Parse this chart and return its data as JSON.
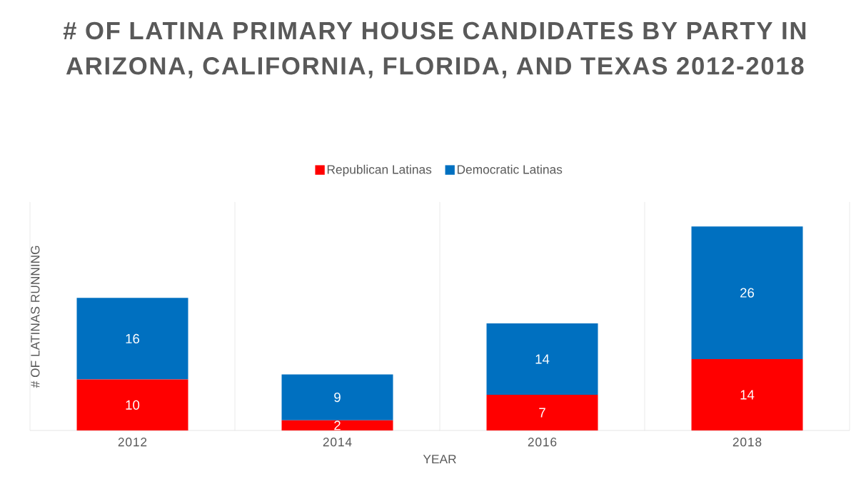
{
  "chart_data": {
    "type": "bar",
    "stacked": true,
    "title": "# OF LATINA PRIMARY HOUSE CANDIDATES BY PARTY IN ARIZONA, CALIFORNIA, FLORIDA, AND TEXAS 2012-2018",
    "xlabel": "YEAR",
    "ylabel": "# OF LATINAS RUNNING",
    "categories": [
      "2012",
      "2014",
      "2016",
      "2018"
    ],
    "series": [
      {
        "name": "Republican Latinas",
        "color": "#ff0000",
        "values": [
          10,
          2,
          7,
          14
        ]
      },
      {
        "name": "Democratic Latinas",
        "color": "#0070c0",
        "values": [
          16,
          9,
          14,
          26
        ]
      }
    ],
    "data_labels": true,
    "legend": "top",
    "grid": "x"
  }
}
